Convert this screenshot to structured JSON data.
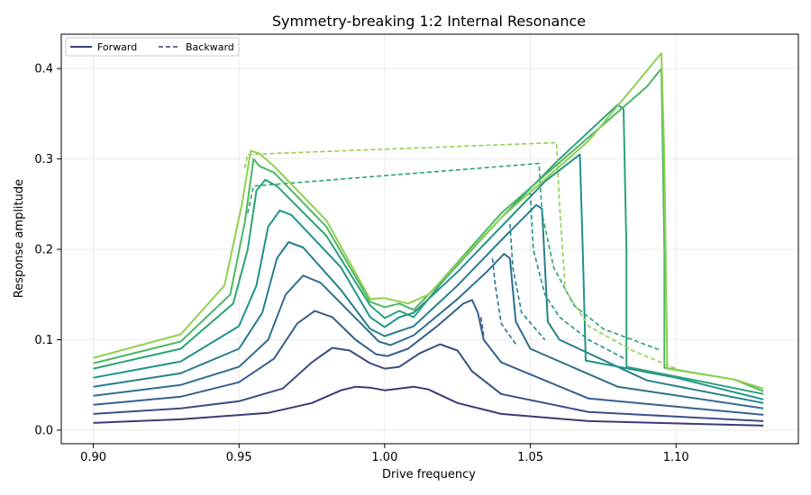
{
  "chart_data": {
    "type": "line",
    "title": "Symmetry-breaking 1:2 Internal Resonance",
    "xlabel": "Drive frequency",
    "ylabel": "Response amplitude",
    "xlim": [
      0.889,
      1.142
    ],
    "ylim": [
      -0.015,
      0.438
    ],
    "xticks": [
      0.9,
      0.95,
      1.0,
      1.05,
      1.1
    ],
    "xtick_labels": [
      "0.90",
      "0.95",
      "1.00",
      "1.05",
      "1.10"
    ],
    "yticks": [
      0.0,
      0.1,
      0.2,
      0.3,
      0.4
    ],
    "ytick_labels": [
      "0.0",
      "0.1",
      "0.2",
      "0.3",
      "0.4"
    ],
    "grid": true,
    "legend": {
      "placement": "top-left",
      "entries": [
        {
          "label": "Forward",
          "style": "solid",
          "color": "#3b3f7f"
        },
        {
          "label": "Backward",
          "style": "dashed",
          "color": "#3b3f7f"
        }
      ]
    },
    "series": [
      {
        "color": "#3b3a78",
        "forward": [
          [
            0.9,
            0.008
          ],
          [
            0.93,
            0.012
          ],
          [
            0.96,
            0.019
          ],
          [
            0.975,
            0.03
          ],
          [
            0.985,
            0.044
          ],
          [
            0.99,
            0.048
          ],
          [
            0.995,
            0.047
          ],
          [
            1.0,
            0.044
          ],
          [
            1.005,
            0.046
          ],
          [
            1.01,
            0.048
          ],
          [
            1.015,
            0.045
          ],
          [
            1.025,
            0.03
          ],
          [
            1.04,
            0.018
          ],
          [
            1.07,
            0.01
          ],
          [
            1.13,
            0.005
          ]
        ],
        "backward": []
      },
      {
        "color": "#3a4d87",
        "forward": [
          [
            0.9,
            0.018
          ],
          [
            0.93,
            0.024
          ],
          [
            0.95,
            0.032
          ],
          [
            0.965,
            0.046
          ],
          [
            0.975,
            0.075
          ],
          [
            0.982,
            0.091
          ],
          [
            0.988,
            0.088
          ],
          [
            0.995,
            0.074
          ],
          [
            1.0,
            0.068
          ],
          [
            1.005,
            0.07
          ],
          [
            1.012,
            0.085
          ],
          [
            1.019,
            0.095
          ],
          [
            1.025,
            0.088
          ],
          [
            1.03,
            0.065
          ],
          [
            1.04,
            0.04
          ],
          [
            1.07,
            0.02
          ],
          [
            1.13,
            0.01
          ]
        ],
        "backward": []
      },
      {
        "color": "#355f8d",
        "forward": [
          [
            0.9,
            0.028
          ],
          [
            0.93,
            0.037
          ],
          [
            0.95,
            0.053
          ],
          [
            0.962,
            0.079
          ],
          [
            0.97,
            0.118
          ],
          [
            0.976,
            0.132
          ],
          [
            0.982,
            0.125
          ],
          [
            0.99,
            0.1
          ],
          [
            0.997,
            0.084
          ],
          [
            1.001,
            0.082
          ],
          [
            1.008,
            0.09
          ],
          [
            1.018,
            0.115
          ],
          [
            1.027,
            0.14
          ],
          [
            1.03,
            0.144
          ],
          [
            1.032,
            0.13
          ],
          [
            1.034,
            0.1
          ],
          [
            1.04,
            0.075
          ],
          [
            1.07,
            0.035
          ],
          [
            1.13,
            0.017
          ]
        ],
        "backward": [
          [
            1.033,
            0.125
          ],
          [
            1.034,
            0.105
          ]
        ]
      },
      {
        "color": "#2f6f8e",
        "forward": [
          [
            0.9,
            0.038
          ],
          [
            0.93,
            0.05
          ],
          [
            0.95,
            0.07
          ],
          [
            0.96,
            0.1
          ],
          [
            0.966,
            0.15
          ],
          [
            0.972,
            0.171
          ],
          [
            0.978,
            0.163
          ],
          [
            0.99,
            0.124
          ],
          [
            0.998,
            0.098
          ],
          [
            1.002,
            0.094
          ],
          [
            1.01,
            0.105
          ],
          [
            1.025,
            0.145
          ],
          [
            1.035,
            0.175
          ],
          [
            1.041,
            0.195
          ],
          [
            1.043,
            0.19
          ],
          [
            1.045,
            0.12
          ],
          [
            1.05,
            0.09
          ],
          [
            1.08,
            0.048
          ],
          [
            1.13,
            0.024
          ]
        ],
        "backward": [
          [
            1.037,
            0.19
          ],
          [
            1.038,
            0.16
          ],
          [
            1.04,
            0.118
          ],
          [
            1.045,
            0.095
          ]
        ]
      },
      {
        "color": "#277f8e",
        "forward": [
          [
            0.9,
            0.048
          ],
          [
            0.93,
            0.063
          ],
          [
            0.95,
            0.09
          ],
          [
            0.958,
            0.13
          ],
          [
            0.963,
            0.19
          ],
          [
            0.967,
            0.208
          ],
          [
            0.972,
            0.202
          ],
          [
            0.985,
            0.155
          ],
          [
            0.995,
            0.112
          ],
          [
            1.0,
            0.104
          ],
          [
            1.01,
            0.115
          ],
          [
            1.025,
            0.16
          ],
          [
            1.04,
            0.21
          ],
          [
            1.052,
            0.249
          ],
          [
            1.054,
            0.245
          ],
          [
            1.056,
            0.12
          ],
          [
            1.06,
            0.1
          ],
          [
            1.09,
            0.055
          ],
          [
            1.13,
            0.03
          ]
        ],
        "backward": [
          [
            1.043,
            0.228
          ],
          [
            1.044,
            0.18
          ],
          [
            1.047,
            0.13
          ],
          [
            1.055,
            0.1
          ]
        ]
      },
      {
        "color": "#20928c",
        "forward": [
          [
            0.9,
            0.058
          ],
          [
            0.93,
            0.076
          ],
          [
            0.95,
            0.115
          ],
          [
            0.956,
            0.16
          ],
          [
            0.96,
            0.225
          ],
          [
            0.964,
            0.243
          ],
          [
            0.968,
            0.238
          ],
          [
            0.985,
            0.18
          ],
          [
            0.995,
            0.125
          ],
          [
            1.0,
            0.114
          ],
          [
            1.005,
            0.125
          ],
          [
            1.01,
            0.13
          ],
          [
            1.025,
            0.175
          ],
          [
            1.04,
            0.225
          ],
          [
            1.055,
            0.275
          ],
          [
            1.067,
            0.305
          ],
          [
            1.068,
            0.2
          ],
          [
            1.069,
            0.077
          ],
          [
            1.1,
            0.058
          ],
          [
            1.13,
            0.034
          ]
        ],
        "backward": [
          [
            1.05,
            0.262
          ],
          [
            1.051,
            0.2
          ],
          [
            1.055,
            0.15
          ],
          [
            1.06,
            0.125
          ],
          [
            1.07,
            0.1
          ],
          [
            1.083,
            0.078
          ]
        ]
      },
      {
        "color": "#2aa27a",
        "forward": [
          [
            0.9,
            0.068
          ],
          [
            0.93,
            0.09
          ],
          [
            0.948,
            0.14
          ],
          [
            0.953,
            0.2
          ],
          [
            0.956,
            0.265
          ],
          [
            0.959,
            0.277
          ],
          [
            0.963,
            0.27
          ],
          [
            0.98,
            0.215
          ],
          [
            0.995,
            0.138
          ],
          [
            1.0,
            0.124
          ],
          [
            1.005,
            0.132
          ],
          [
            1.01,
            0.125
          ],
          [
            1.02,
            0.165
          ],
          [
            1.04,
            0.235
          ],
          [
            1.06,
            0.3
          ],
          [
            1.08,
            0.36
          ],
          [
            1.082,
            0.355
          ],
          [
            1.083,
            0.2
          ],
          [
            1.083,
            0.07
          ],
          [
            1.11,
            0.053
          ],
          [
            1.13,
            0.04
          ]
        ],
        "backward": [
          [
            0.953,
            0.24
          ],
          [
            0.955,
            0.27
          ],
          [
            1.053,
            0.295
          ],
          [
            1.054,
            0.24
          ],
          [
            1.058,
            0.18
          ],
          [
            1.065,
            0.138
          ],
          [
            1.075,
            0.112
          ],
          [
            1.095,
            0.088
          ]
        ]
      },
      {
        "color": "#4cb763",
        "forward": [
          [
            0.9,
            0.074
          ],
          [
            0.93,
            0.098
          ],
          [
            0.947,
            0.15
          ],
          [
            0.952,
            0.23
          ],
          [
            0.955,
            0.3
          ],
          [
            0.957,
            0.292
          ],
          [
            0.962,
            0.285
          ],
          [
            0.98,
            0.225
          ],
          [
            0.995,
            0.142
          ],
          [
            1.0,
            0.136
          ],
          [
            1.005,
            0.14
          ],
          [
            1.01,
            0.133
          ],
          [
            1.018,
            0.16
          ],
          [
            1.04,
            0.24
          ],
          [
            1.065,
            0.31
          ],
          [
            1.09,
            0.38
          ],
          [
            1.095,
            0.4
          ],
          [
            1.096,
            0.2
          ],
          [
            1.096,
            0.069
          ],
          [
            1.12,
            0.056
          ],
          [
            1.13,
            0.043
          ]
        ],
        "backward": []
      },
      {
        "color": "#8fd14e",
        "forward": [
          [
            0.9,
            0.08
          ],
          [
            0.93,
            0.106
          ],
          [
            0.945,
            0.16
          ],
          [
            0.951,
            0.25
          ],
          [
            0.954,
            0.309
          ],
          [
            0.957,
            0.306
          ],
          [
            0.962,
            0.292
          ],
          [
            0.98,
            0.232
          ],
          [
            0.995,
            0.145
          ],
          [
            1.0,
            0.146
          ],
          [
            1.008,
            0.14
          ],
          [
            1.015,
            0.15
          ],
          [
            1.04,
            0.235
          ],
          [
            1.07,
            0.32
          ],
          [
            1.095,
            0.417
          ],
          [
            1.096,
            0.3
          ],
          [
            1.097,
            0.068
          ],
          [
            1.12,
            0.056
          ],
          [
            1.13,
            0.046
          ]
        ],
        "backward": [
          [
            0.952,
            0.29
          ],
          [
            0.953,
            0.305
          ],
          [
            1.059,
            0.318
          ],
          [
            1.06,
            0.25
          ],
          [
            1.062,
            0.155
          ],
          [
            1.07,
            0.115
          ],
          [
            1.085,
            0.088
          ],
          [
            1.1,
            0.068
          ]
        ]
      }
    ]
  }
}
